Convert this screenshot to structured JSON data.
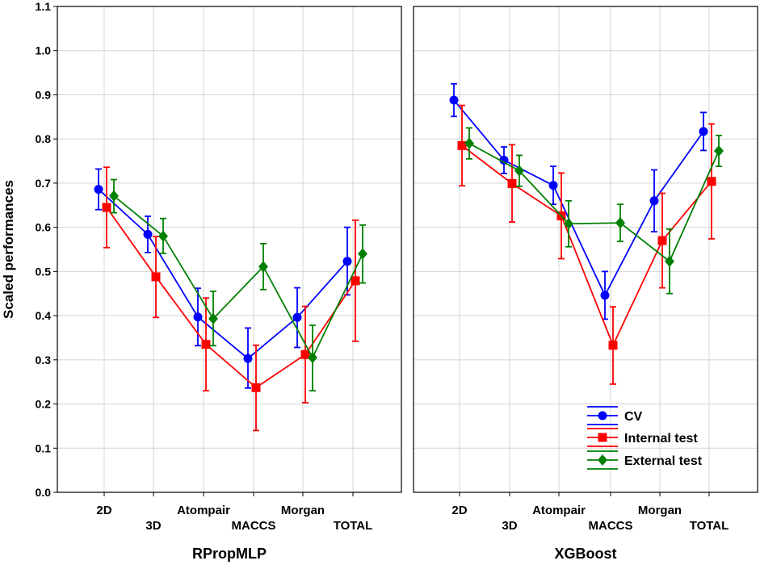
{
  "chart_data": {
    "type": "line",
    "ylabel": "Scaled performances",
    "ylim": [
      0.0,
      1.1
    ],
    "yticks": [
      "0.0",
      "0.1",
      "0.2",
      "0.3",
      "0.4",
      "0.5",
      "0.6",
      "0.7",
      "0.8",
      "0.9",
      "1.0",
      "1.1"
    ],
    "grid": true,
    "categories": [
      "2D",
      "3D",
      "Atompair",
      "MACCS",
      "Morgan",
      "TOTAL"
    ],
    "legend": {
      "placement": "bottom-right of right panel",
      "entries": [
        "CV",
        "Internal test",
        "External test"
      ]
    },
    "colors": {
      "CV": "#0000ff",
      "Internal test": "#ff0000",
      "External test": "#008000"
    },
    "markers": {
      "CV": "circle",
      "Internal test": "square",
      "External test": "diamond"
    },
    "panels": [
      {
        "title": "RPropMLP",
        "series": [
          {
            "name": "CV",
            "values": [
              0.686,
              0.584,
              0.397,
              0.303,
              0.396,
              0.523
            ],
            "lower": [
              0.64,
              0.543,
              0.332,
              0.236,
              0.328,
              0.447
            ],
            "upper": [
              0.732,
              0.625,
              0.462,
              0.372,
              0.463,
              0.6
            ]
          },
          {
            "name": "Internal test",
            "values": [
              0.645,
              0.488,
              0.335,
              0.237,
              0.312,
              0.479
            ],
            "lower": [
              0.554,
              0.396,
              0.23,
              0.14,
              0.203,
              0.342
            ],
            "upper": [
              0.736,
              0.579,
              0.44,
              0.333,
              0.421,
              0.616
            ]
          },
          {
            "name": "External test",
            "values": [
              0.671,
              0.58,
              0.393,
              0.511,
              0.305,
              0.54
            ],
            "lower": [
              0.633,
              0.541,
              0.332,
              0.459,
              0.23,
              0.474
            ],
            "upper": [
              0.708,
              0.62,
              0.455,
              0.563,
              0.378,
              0.605
            ]
          }
        ]
      },
      {
        "title": "XGBoost",
        "series": [
          {
            "name": "CV",
            "values": [
              0.888,
              0.752,
              0.695,
              0.446,
              0.66,
              0.817
            ],
            "lower": [
              0.851,
              0.722,
              0.652,
              0.392,
              0.59,
              0.774
            ],
            "upper": [
              0.925,
              0.782,
              0.738,
              0.5,
              0.73,
              0.86
            ]
          },
          {
            "name": "Internal test",
            "values": [
              0.785,
              0.699,
              0.626,
              0.333,
              0.57,
              0.704
            ],
            "lower": [
              0.694,
              0.612,
              0.529,
              0.245,
              0.463,
              0.574
            ],
            "upper": [
              0.876,
              0.787,
              0.723,
              0.42,
              0.677,
              0.834
            ]
          },
          {
            "name": "External test",
            "values": [
              0.79,
              0.728,
              0.608,
              0.61,
              0.523,
              0.773
            ],
            "lower": [
              0.755,
              0.693,
              0.556,
              0.568,
              0.45,
              0.738
            ],
            "upper": [
              0.825,
              0.763,
              0.66,
              0.652,
              0.596,
              0.808
            ]
          }
        ]
      }
    ]
  }
}
